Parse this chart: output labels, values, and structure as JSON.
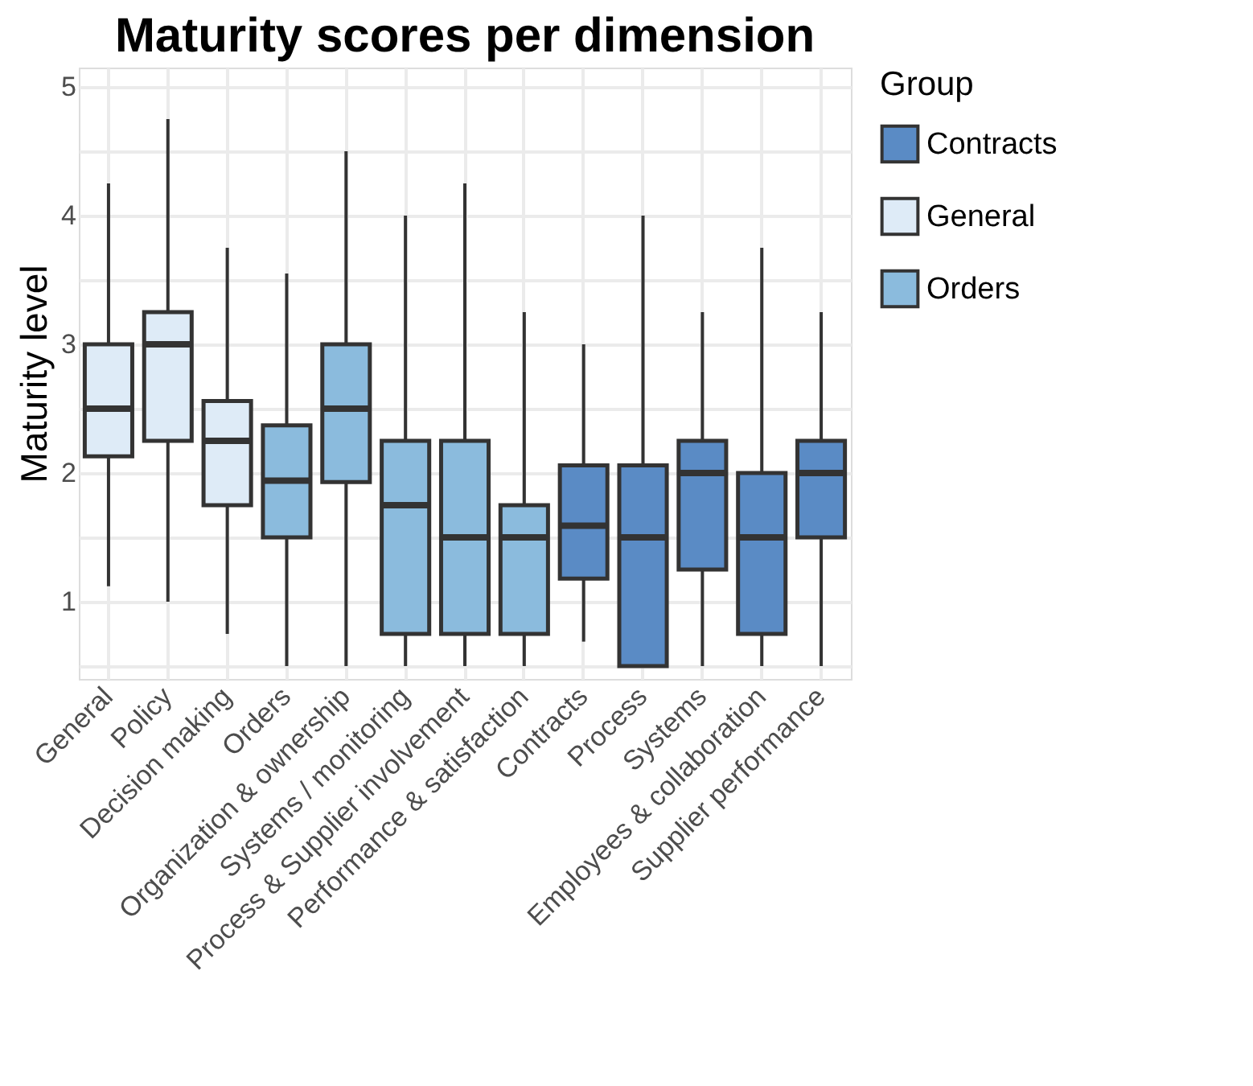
{
  "chart_data": {
    "type": "box",
    "title": "Maturity scores per dimension",
    "ylabel": "Maturity level",
    "legend_title": "Group",
    "categories": [
      "General",
      "Policy",
      "Decision making",
      "Orders",
      "Organization & ownership",
      "Systems / monitoring",
      "Process & Supplier involvement",
      "Performance & satisfaction",
      "Contracts",
      "Process",
      "Systems",
      "Employees & collaboration",
      "Supplier performance"
    ],
    "series": [
      {
        "name": "Contracts",
        "color": "#5a8bc5",
        "boxes": [
          null,
          null,
          null,
          null,
          null,
          null,
          null,
          null,
          {
            "low": 0.69,
            "q1": 1.18,
            "median": 1.59,
            "q3": 2.06,
            "high": 3.0
          },
          {
            "low": 0.5,
            "q1": 0.5,
            "median": 1.5,
            "q3": 2.06,
            "high": 4.0
          },
          {
            "low": 0.5,
            "q1": 1.25,
            "median": 2.0,
            "q3": 2.25,
            "high": 3.25
          },
          {
            "low": 0.5,
            "q1": 0.75,
            "median": 1.5,
            "q3": 2.0,
            "high": 3.75
          },
          {
            "low": 0.5,
            "q1": 1.5,
            "median": 2.0,
            "q3": 2.25,
            "high": 3.25
          }
        ]
      },
      {
        "name": "General",
        "color": "#deebf7",
        "boxes": [
          {
            "low": 1.12,
            "q1": 2.13,
            "median": 2.5,
            "q3": 3.0,
            "high": 4.25
          },
          {
            "low": 1.0,
            "q1": 2.25,
            "median": 3.0,
            "q3": 3.25,
            "high": 4.75
          },
          {
            "low": 0.75,
            "q1": 1.75,
            "median": 2.25,
            "q3": 2.56,
            "high": 3.75
          },
          null,
          null,
          null,
          null,
          null,
          null,
          null,
          null,
          null,
          null
        ]
      },
      {
        "name": "Orders",
        "color": "#8bbbdd",
        "boxes": [
          null,
          null,
          null,
          {
            "low": 0.5,
            "q1": 1.5,
            "median": 1.94,
            "q3": 2.37,
            "high": 3.55
          },
          {
            "low": 0.5,
            "q1": 1.93,
            "median": 2.5,
            "q3": 3.0,
            "high": 4.5
          },
          {
            "low": 0.5,
            "q1": 0.75,
            "median": 1.75,
            "q3": 2.25,
            "high": 4.0
          },
          {
            "low": 0.5,
            "q1": 0.75,
            "median": 1.5,
            "q3": 2.25,
            "high": 4.25
          },
          {
            "low": 0.5,
            "q1": 0.75,
            "median": 1.5,
            "q3": 1.75,
            "high": 3.25
          },
          null,
          null,
          null,
          null,
          null
        ]
      }
    ],
    "ylim": [
      0.4,
      5.15
    ],
    "yticks": [
      {
        "value": 0.5,
        "label": null
      },
      1,
      {
        "value": 1.5,
        "label": null
      },
      2,
      {
        "value": 2.5,
        "label": null
      },
      3,
      {
        "value": 3.5,
        "label": null
      },
      4,
      {
        "value": 4.5,
        "label": null
      },
      5
    ],
    "grid": true,
    "legend": "right"
  }
}
